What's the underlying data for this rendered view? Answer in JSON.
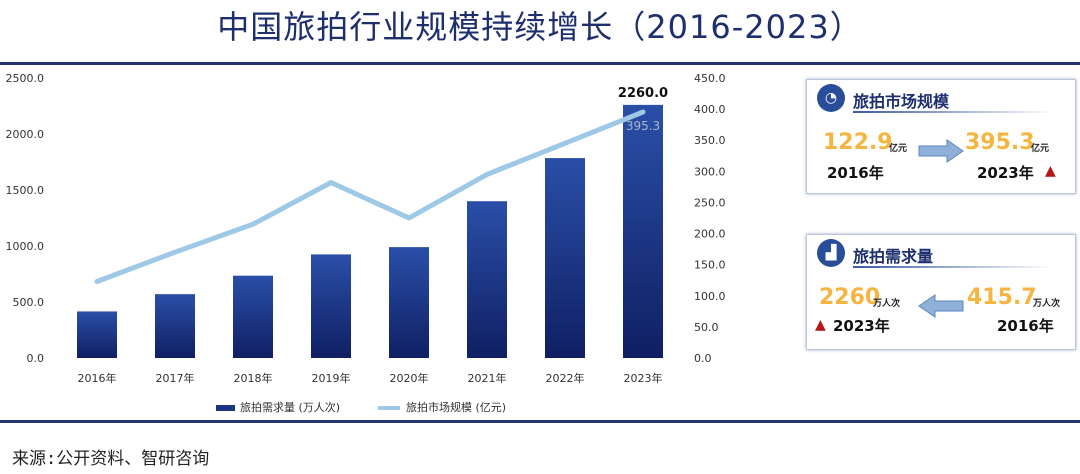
{
  "title": "中国旅拍行业规模持续增长（2016-2023）",
  "source": "来源:公开资料、智研咨询",
  "chart_data": {
    "type": "bar+line",
    "categories": [
      "2016年",
      "2017年",
      "2018年",
      "2019年",
      "2020年",
      "2021年",
      "2022年",
      "2023年"
    ],
    "series": [
      {
        "name": "旅拍需求量 (万人次)",
        "type": "bar",
        "axis": "left",
        "values": [
          415.7,
          570,
          735,
          925,
          990,
          1400,
          1785,
          2260
        ]
      },
      {
        "name": "旅拍市场规模 (亿元)",
        "type": "line",
        "axis": "right",
        "values": [
          122.9,
          170,
          215,
          282,
          225,
          295,
          345,
          395.3
        ]
      }
    ],
    "left_axis": {
      "min": 0,
      "max": 2500,
      "ticks": [
        "0.0",
        "500.0",
        "1000.0",
        "1500.0",
        "2000.0",
        "2500.0"
      ]
    },
    "right_axis": {
      "min": 0,
      "max": 450,
      "ticks": [
        "0.0",
        "50.0",
        "100.0",
        "150.0",
        "200.0",
        "250.0",
        "300.0",
        "350.0",
        "400.0",
        "450.0"
      ]
    },
    "data_labels": {
      "bar_2023": "2260.0",
      "line_2023": "395.3"
    },
    "legend": [
      "旅拍需求量 (万人次)",
      "旅拍市场规模 (亿元)"
    ],
    "colors": {
      "bar_top": "#2a4fa8",
      "bar_bottom": "#101f63",
      "line": "#9dc8e6"
    }
  },
  "cards": {
    "market": {
      "title": "旅拍市场规模",
      "icon": "pie-chart-icon",
      "from_value": "122.9",
      "from_unit": "亿元",
      "from_year": "2016年",
      "to_value": "395.3",
      "to_unit": "亿元",
      "to_year": "2023年"
    },
    "demand": {
      "title": "旅拍需求量",
      "icon": "bar-trend-icon",
      "left_value": "2260",
      "left_unit": "万人次",
      "left_year": "2023年",
      "right_value": "415.7",
      "right_unit": "万人次",
      "right_year": "2016年"
    }
  }
}
